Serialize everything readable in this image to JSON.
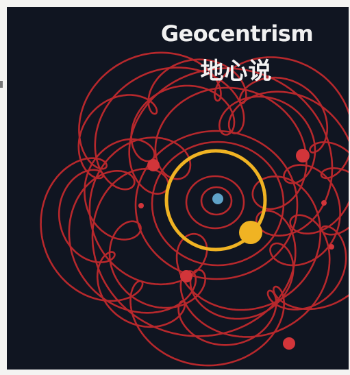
{
  "title": "Geocentrism",
  "subtitle": "地心说",
  "colors": {
    "background": "#101521",
    "orbit": "#c62a2e",
    "sun_orbit": "#f0b323",
    "sun": "#f0b323",
    "earth": "#5fa2c8",
    "planet": "#d2353a"
  },
  "icons": [
    "earth-icon",
    "sun-icon"
  ]
}
